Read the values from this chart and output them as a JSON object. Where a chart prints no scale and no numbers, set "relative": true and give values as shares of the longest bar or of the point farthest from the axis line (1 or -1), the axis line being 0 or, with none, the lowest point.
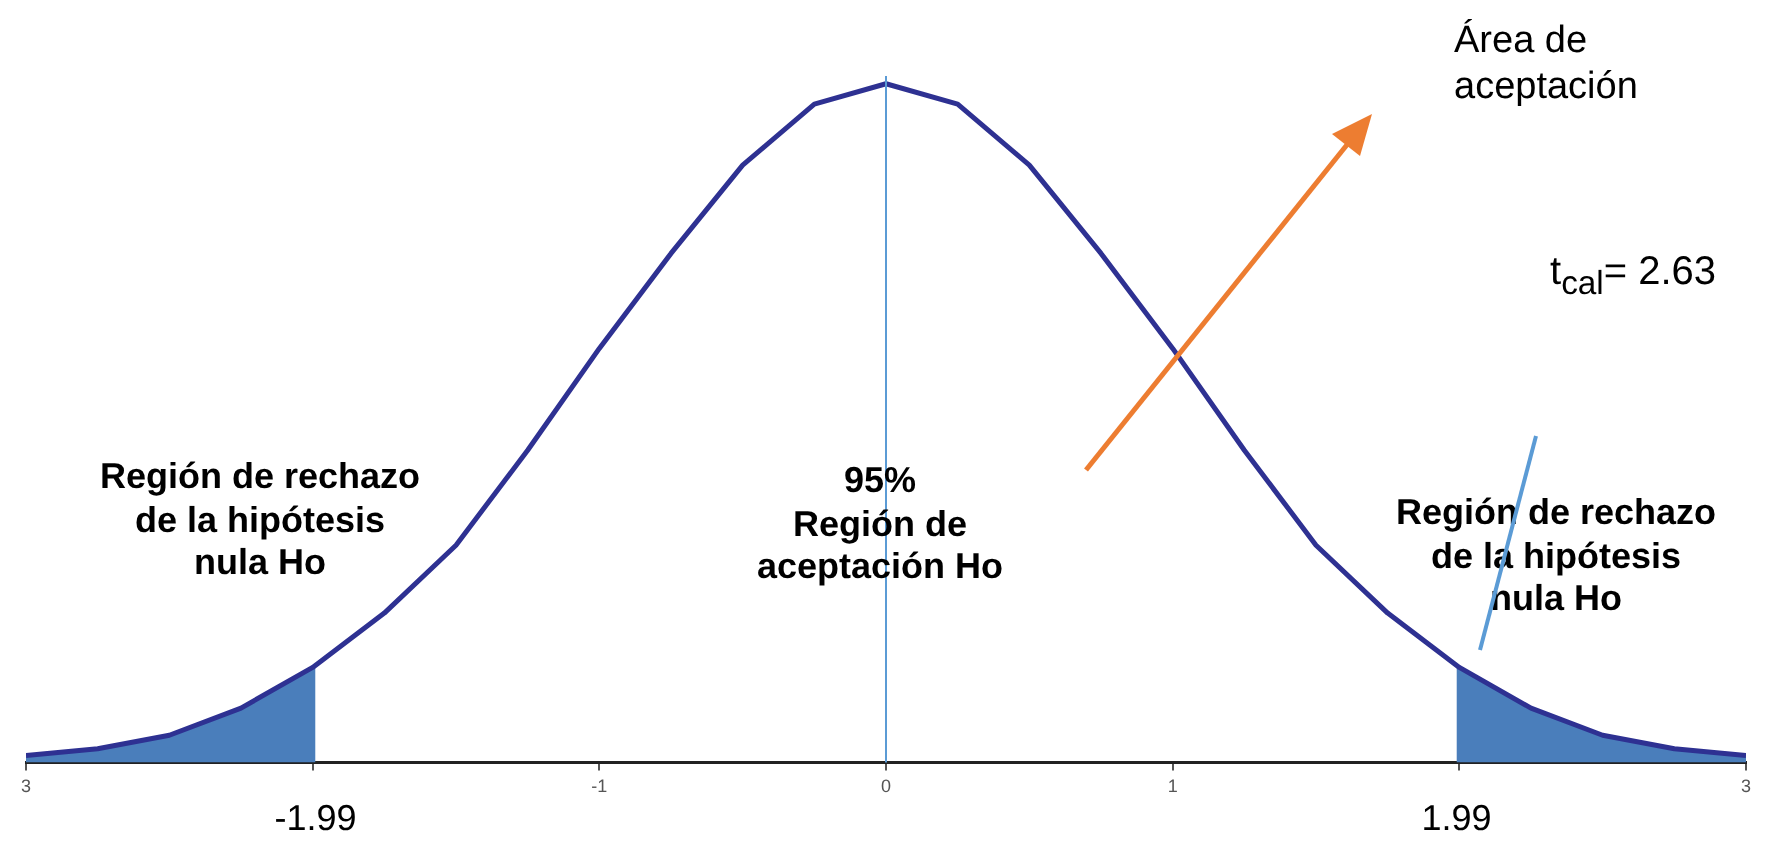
{
  "chart_data": {
    "type": "line",
    "relative": true,
    "marker": "none",
    "grid": false,
    "legend": false,
    "tick_labels": "x",
    "x": [
      -3,
      -2.75,
      -2.5,
      -2.25,
      -2,
      -1.75,
      -1.5,
      -1.25,
      -1,
      -0.75,
      -0.5,
      -0.25,
      0,
      0.25,
      0.5,
      0.75,
      1,
      1.25,
      1.5,
      1.75,
      2,
      2.25,
      2.5,
      2.75,
      3
    ],
    "xlim": [
      -3,
      3
    ],
    "xticks": [
      {
        "value": -3,
        "label": "3"
      },
      {
        "value": -2,
        "label": null
      },
      {
        "value": -1,
        "label": "-1"
      },
      0,
      1,
      {
        "value": 2,
        "label": null
      },
      3
    ],
    "series": [
      {
        "type": "line",
        "color": "#2e3192",
        "values": [
          0.01,
          0.02,
          0.04,
          0.08,
          0.14,
          0.22,
          0.32,
          0.46,
          0.61,
          0.75,
          0.88,
          0.97,
          1,
          0.97,
          0.88,
          0.75,
          0.61,
          0.46,
          0.32,
          0.22,
          0.14,
          0.08,
          0.04,
          0.02,
          0.01
        ]
      },
      {
        "type": "area",
        "color": "#4a7ebb",
        "x": [
          -3,
          -2.75,
          -2.5,
          -2.25,
          -1.99
        ],
        "values": [
          0.01,
          0.02,
          0.04,
          0.08,
          0.14
        ]
      },
      {
        "type": "area",
        "color": "#4a7ebb",
        "x": [
          1.99,
          2.25,
          2.5,
          2.75,
          3
        ],
        "values": [
          0.14,
          0.08,
          0.04,
          0.02,
          0.01
        ]
      }
    ],
    "ref_lines": [
      {
        "axis": "x",
        "value": 0,
        "color": "#5b9bd5"
      }
    ],
    "annotations": [
      "Área de\naceptación",
      "t$_{cal}$= 2.63",
      "Región de rechazo\nde la hipótesis\nnula Ho",
      "95%\nRegión de\naceptación Ho",
      "Región de rechazo\nde la hipótesis\nnula Ho",
      {
        "text": "-1.99",
        "x": -1.99,
        "y": 0
      },
      {
        "text": "1.99",
        "x": 1.99,
        "y": 0
      }
    ]
  }
}
